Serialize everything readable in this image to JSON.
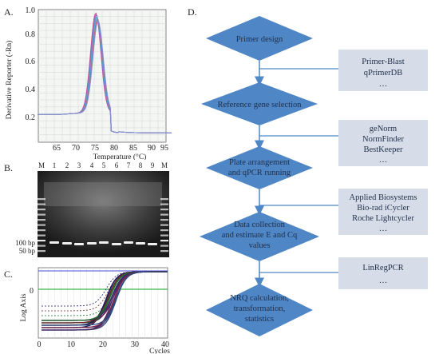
{
  "panels": {
    "a": {
      "label": "A.",
      "ylabel": "Derivative Reporter (-Rn)",
      "xlabel": "Temperature (°C)",
      "yticks": [
        "0.2",
        "0.4",
        "0.6",
        "0.8",
        "1.0"
      ],
      "xticks": [
        "65",
        "70",
        "75",
        "80",
        "85",
        "90",
        "95"
      ]
    },
    "b": {
      "label": "B.",
      "lanes": [
        "M",
        "1",
        "2",
        "3",
        "4",
        "5",
        "6",
        "7",
        "8",
        "9",
        "M"
      ],
      "markers": [
        "100 bp",
        "50 bp"
      ]
    },
    "c": {
      "label": "C.",
      "ylabel": "Log Axis",
      "y0": "0",
      "xlabel": "Cycles",
      "xticks": [
        "0",
        "10",
        "20",
        "30",
        "40"
      ]
    },
    "d": {
      "label": "D.",
      "steps": [
        {
          "lines": [
            "Primer design"
          ]
        },
        {
          "lines": [
            "Reference gene selection"
          ]
        },
        {
          "lines": [
            "Plate arrangement",
            "and qPCR running"
          ]
        },
        {
          "lines": [
            "Data collection",
            "and estimate E and Cq",
            "values"
          ]
        },
        {
          "lines": [
            "NRQ calculation,",
            "transformation,",
            "statistics"
          ]
        }
      ],
      "tools": [
        {
          "lines": [
            "Primer-Blast",
            "qPrimerDB",
            "…"
          ]
        },
        {
          "lines": [
            "geNorm",
            "NormFinder",
            "BestKeeper",
            "…"
          ]
        },
        {
          "lines": [
            "Applied Biosystems",
            "Bio-rad iCycler",
            "Roche Lightcycler",
            "…"
          ]
        },
        {
          "lines": [
            "LinRegPCR",
            "…"
          ]
        }
      ]
    }
  },
  "colors": {
    "diamond": "#4f86c6",
    "diamond_text": "#1f2f4a",
    "tool_box": "#d7dde8",
    "connector": "#4f86c6"
  }
}
